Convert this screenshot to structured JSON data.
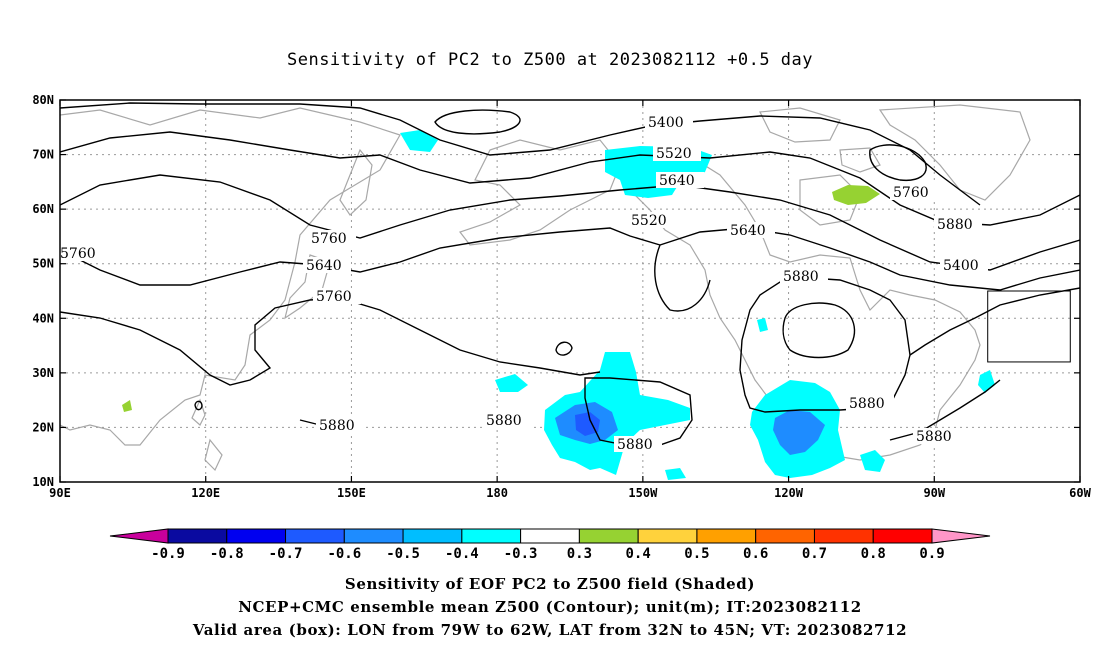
{
  "title": "Sensitivity of PC2 to Z500 at 2023082112 +0.5 day",
  "map": {
    "lon_range": [
      90,
      300
    ],
    "lat_range": [
      10,
      80
    ],
    "x_ticks": [
      {
        "lon": 90,
        "label": "90E"
      },
      {
        "lon": 120,
        "label": "120E"
      },
      {
        "lon": 150,
        "label": "150E"
      },
      {
        "lon": 180,
        "label": "180"
      },
      {
        "lon": 210,
        "label": "150W"
      },
      {
        "lon": 240,
        "label": "120W"
      },
      {
        "lon": 270,
        "label": "90W"
      },
      {
        "lon": 300,
        "label": "60W"
      }
    ],
    "y_ticks": [
      {
        "lat": 80,
        "label": "80N"
      },
      {
        "lat": 70,
        "label": "70N"
      },
      {
        "lat": 60,
        "label": "60N"
      },
      {
        "lat": 50,
        "label": "50N"
      },
      {
        "lat": 40,
        "label": "40N"
      },
      {
        "lat": 30,
        "label": "30N"
      },
      {
        "lat": 20,
        "label": "20N"
      },
      {
        "lat": 10,
        "label": "10N"
      }
    ],
    "grid": "dotted",
    "contour_labels": [
      "5400",
      "5520",
      "5640",
      "5760",
      "5880",
      "5400",
      "5520",
      "5640",
      "5760",
      "5760",
      "5640",
      "5760",
      "5880",
      "5880",
      "5880",
      "5880",
      "5880",
      "5880"
    ],
    "valid_box": {
      "lon_min": 281,
      "lon_max": 298,
      "lat_min": 32,
      "lat_max": 45
    }
  },
  "colorbar": {
    "labels": [
      "-0.9",
      "-0.8",
      "-0.7",
      "-0.6",
      "-0.5",
      "-0.4",
      "-0.3",
      "0.3",
      "0.4",
      "0.5",
      "0.6",
      "0.7",
      "0.8",
      "0.9"
    ],
    "colors": [
      "#0a0aa0",
      "#0000f0",
      "#1e5aff",
      "#1e8cff",
      "#00beff",
      "#00ffff",
      "#ffffff",
      "#96d232",
      "#ffd23c",
      "#ffa000",
      "#ff6400",
      "#ff3200",
      "#ff0000"
    ],
    "low_end_color": "#c8009c",
    "high_end_color": "#ff96c8"
  },
  "captions": {
    "line1": "Sensitivity of EOF PC2 to Z500 field (Shaded)",
    "line2": "NCEP+CMC ensemble mean Z500 (Contour); unit(m); IT:2023082112",
    "line3": "Valid area (box): LON from 79W to 62W, LAT from 32N to 45N; VT: 2023082712"
  }
}
